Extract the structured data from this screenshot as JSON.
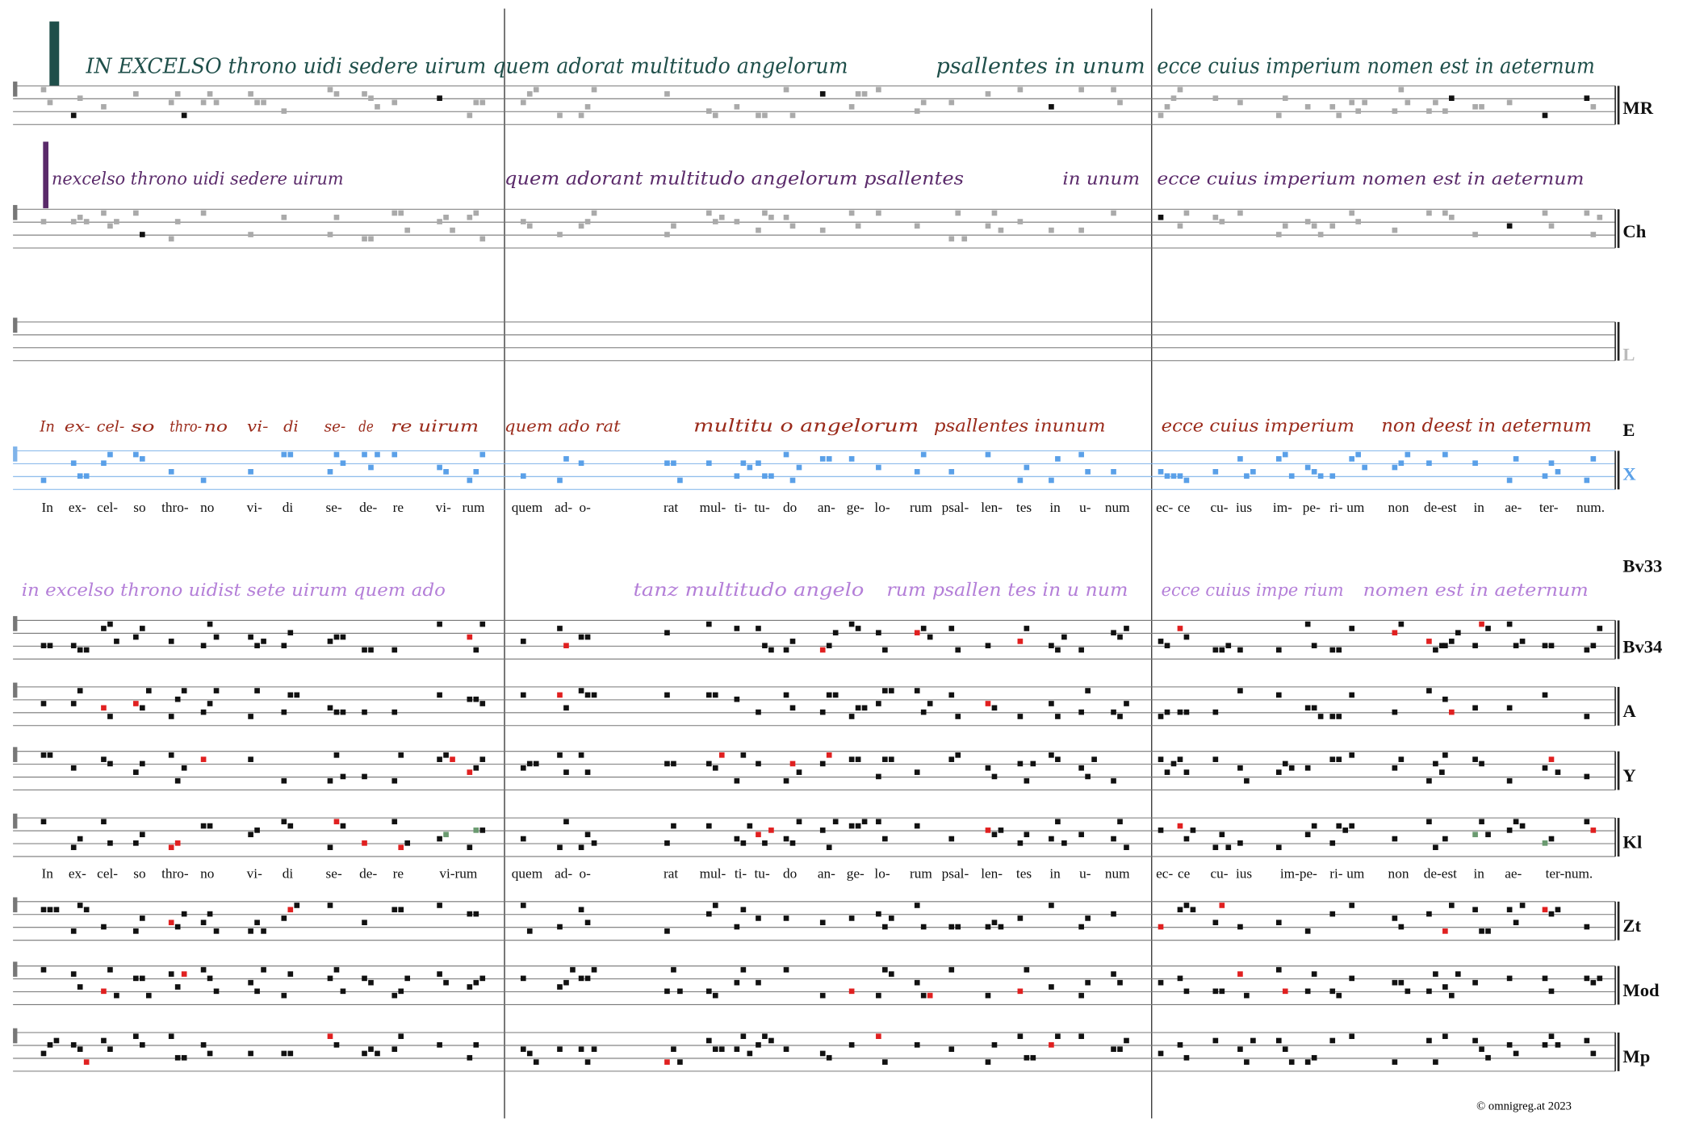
{
  "rows": [
    {
      "label": "MR",
      "text": [
        "IN EXCELSO throno uidi sedere uirum quem adorat multitudo angelorum",
        "psallentes in unum",
        "ecce cuius imperium nomen est in aeternum"
      ]
    },
    {
      "label": "Ch",
      "text": [
        "nexcelso throno uidi sedere uirum",
        "quem adorant multitudo angelorum psallentes",
        "in unum",
        "ecce cuius imperium nomen est in aeternum"
      ]
    },
    {
      "label": "L",
      "text": []
    },
    {
      "label": "E",
      "text": [
        "In",
        "ex-",
        "cel-",
        "so",
        "thro-",
        "no",
        "vi-",
        "di",
        "se-",
        "de",
        "re uirum",
        "quem ado rat",
        "multitu o angelorum",
        "psallentes inunum",
        "ecce cuius imperium",
        "non deest in aeternum"
      ]
    },
    {
      "label": "X",
      "text": []
    },
    {
      "label": "Bv33",
      "text": [
        "in excelso throno uidist sete uirum quem ado",
        "tanz multitudo angelo",
        "rum psallen tes in u num",
        "ecce cuius impe rium",
        "nomen est in aeternum"
      ]
    },
    {
      "label": "Bv34",
      "text": []
    },
    {
      "label": "A",
      "text": []
    },
    {
      "label": "Y",
      "text": []
    },
    {
      "label": "Kl",
      "text": []
    },
    {
      "label": "Zt",
      "text": []
    },
    {
      "label": "Mod",
      "text": []
    },
    {
      "label": "Mp",
      "text": []
    }
  ],
  "lyrics": [
    [
      "In",
      "ex-",
      "cel-",
      "so",
      "thro-",
      "no",
      "vi-",
      "di",
      "se-",
      "de-",
      "re",
      "vi-",
      "rum",
      "quem",
      "ad-",
      "o-",
      "rat",
      "mul-",
      "ti-",
      "tu-",
      "do",
      "an-",
      "ge-",
      "lo-",
      "rum",
      "psal-",
      "len-",
      "tes",
      "in",
      "u-",
      "num",
      "ec-",
      "ce",
      "cu-",
      "ius",
      "im-",
      "pe-",
      "ri-",
      "um",
      "non",
      "de-",
      "est",
      "in",
      "ae-",
      "ter-",
      "num."
    ],
    [
      "In",
      "ex-",
      "cel-",
      "so",
      "thro-",
      "no",
      "vi-",
      "di",
      "se-",
      "de-",
      "re",
      "vi-rum",
      "quem",
      "ad-",
      "o-",
      "rat",
      "mul-",
      "ti-",
      "tu-",
      "do",
      "an-",
      "ge-",
      "lo-",
      "rum",
      "psal-",
      "len-",
      "tes",
      "in",
      "u-",
      "num",
      "ec-",
      "ce",
      "cu-",
      "ius",
      "im-pe-",
      "ri-",
      "um",
      "non",
      "de-est",
      "in",
      "ae-",
      "ter-num."
    ]
  ],
  "footer": "© omnigreg.at   2023"
}
